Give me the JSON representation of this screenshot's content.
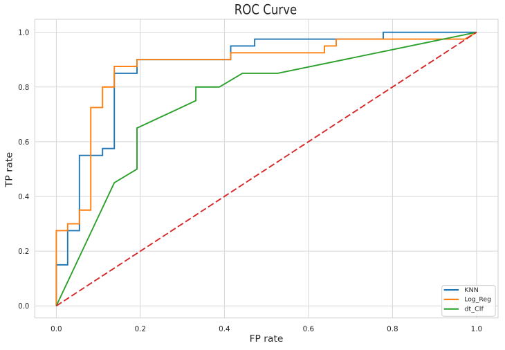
{
  "figure": {
    "kind": "matplotlib-roc-plot",
    "background": "#ffffff"
  },
  "chart_data": {
    "type": "line",
    "title": "ROC Curve",
    "xlabel": "FP rate",
    "ylabel": "TP rate",
    "xlim": [
      -0.05,
      1.05
    ],
    "ylim": [
      -0.05,
      1.05
    ],
    "grid": true,
    "grid_color": "#d7d7db",
    "spine_color": "#cdcdd1",
    "text_color": "#262626",
    "x_ticks": [
      0.0,
      0.2,
      0.4,
      0.6,
      0.8,
      1.0
    ],
    "y_ticks": [
      0.0,
      0.2,
      0.4,
      0.6,
      0.8,
      1.0
    ],
    "x_tick_labels": [
      "0.0",
      "0.2",
      "0.4",
      "0.6",
      "0.8",
      "1.0"
    ],
    "y_tick_labels": [
      "0.0",
      "0.2",
      "0.4",
      "0.6",
      "0.8",
      "1.0"
    ],
    "legend_position": "lower right",
    "legend_entries": [
      "KNN",
      "Log_Reg",
      "dt_Clf"
    ],
    "series": [
      {
        "name": "KNN",
        "color": "#1f77b4",
        "style": "solid",
        "in_legend": true,
        "points": [
          [
            0,
            0
          ],
          [
            0,
            0.15
          ],
          [
            0.027,
            0.15
          ],
          [
            0.027,
            0.275
          ],
          [
            0.055,
            0.275
          ],
          [
            0.055,
            0.55
          ],
          [
            0.11,
            0.55
          ],
          [
            0.11,
            0.575
          ],
          [
            0.138,
            0.575
          ],
          [
            0.138,
            0.85
          ],
          [
            0.192,
            0.85
          ],
          [
            0.192,
            0.9
          ],
          [
            0.415,
            0.9
          ],
          [
            0.415,
            0.95
          ],
          [
            0.472,
            0.95
          ],
          [
            0.472,
            0.975
          ],
          [
            0.778,
            0.975
          ],
          [
            0.778,
            1.0
          ],
          [
            1.0,
            1.0
          ]
        ]
      },
      {
        "name": "Log_Reg",
        "color": "#ff7f0e",
        "style": "solid",
        "in_legend": true,
        "points": [
          [
            0,
            0
          ],
          [
            0,
            0.275
          ],
          [
            0.027,
            0.275
          ],
          [
            0.027,
            0.3
          ],
          [
            0.055,
            0.3
          ],
          [
            0.055,
            0.35
          ],
          [
            0.082,
            0.35
          ],
          [
            0.082,
            0.725
          ],
          [
            0.11,
            0.725
          ],
          [
            0.11,
            0.8
          ],
          [
            0.138,
            0.8
          ],
          [
            0.138,
            0.875
          ],
          [
            0.192,
            0.875
          ],
          [
            0.192,
            0.9
          ],
          [
            0.415,
            0.9
          ],
          [
            0.415,
            0.925
          ],
          [
            0.638,
            0.925
          ],
          [
            0.638,
            0.95
          ],
          [
            0.666,
            0.95
          ],
          [
            0.666,
            0.975
          ],
          [
            0.972,
            0.975
          ],
          [
            1.0,
            1.0
          ]
        ]
      },
      {
        "name": "dt_Clf",
        "color": "#2ca02c",
        "style": "solid",
        "in_legend": true,
        "points": [
          [
            0,
            0
          ],
          [
            0.138,
            0.45
          ],
          [
            0.192,
            0.5
          ],
          [
            0.192,
            0.65
          ],
          [
            0.332,
            0.75
          ],
          [
            0.332,
            0.8
          ],
          [
            0.388,
            0.8
          ],
          [
            0.443,
            0.85
          ],
          [
            0.527,
            0.85
          ],
          [
            1.0,
            1.0
          ]
        ]
      },
      {
        "name": "chance-diagonal",
        "color": "#d62728",
        "style": "dashed",
        "in_legend": false,
        "points": [
          [
            0,
            0
          ],
          [
            1.0,
            1.0
          ]
        ]
      }
    ]
  }
}
